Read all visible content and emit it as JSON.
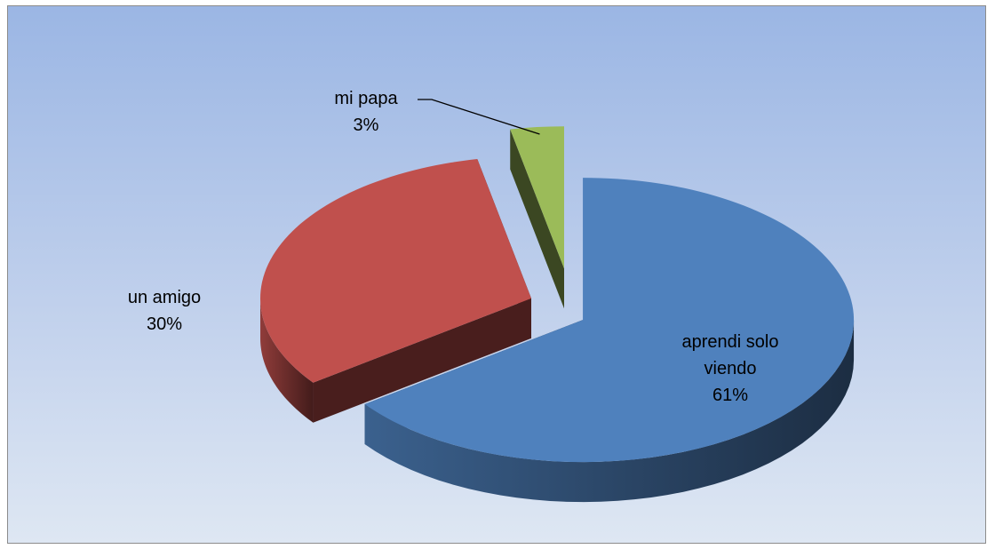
{
  "chart_data": {
    "type": "pie",
    "categories": [
      "aprendi solo viendo",
      "un amigo",
      "mi papa"
    ],
    "values": [
      61,
      30,
      3
    ],
    "value_labels": [
      "61%",
      "30%",
      "3%"
    ],
    "colors": [
      "#4f81bd",
      "#c0504d",
      "#9bbb59"
    ]
  }
}
